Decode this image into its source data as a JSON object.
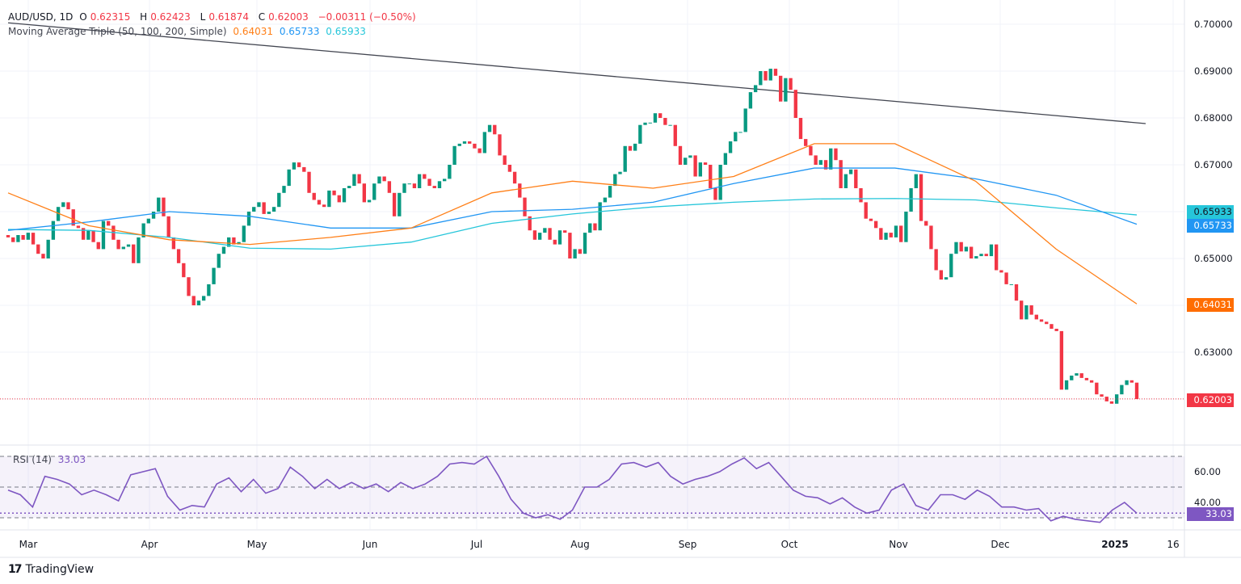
{
  "header": {
    "symbol": "AUD/USD, 1D",
    "open_label": "O",
    "open": "0.62315",
    "high_label": "H",
    "high": "0.62423",
    "low_label": "L",
    "low": "0.61874",
    "close_label": "C",
    "close": "0.62003",
    "change": "−0.00311 (−0.50%)",
    "indicator": "Moving Average Triple (50, 100, 200, Simple)",
    "ma50_value": "0.64031",
    "ma100_value": "0.65733",
    "ma200_value": "0.65933"
  },
  "colors": {
    "up": "#089981",
    "down": "#f23645",
    "ma50": "#ff7f17",
    "ma100": "#2196f3",
    "ma200": "#26c6da",
    "rsi": "#7e57c2",
    "trendline": "#434651"
  },
  "price_axis": {
    "ticks": [
      "0.70000",
      "0.69000",
      "0.68000",
      "0.67000",
      "0.65000",
      "0.63000"
    ],
    "tags": {
      "ma200": "0.65933",
      "ma100": "0.65733",
      "ma50": "0.64031",
      "last": "0.62003"
    }
  },
  "rsi": {
    "label": "RSI (14)",
    "value": "33.03",
    "ticks": [
      "60.00",
      "40.00"
    ],
    "tag": "33.03"
  },
  "time_axis": [
    "Mar",
    "Apr",
    "May",
    "Jun",
    "Jul",
    "Aug",
    "Sep",
    "Oct",
    "Nov",
    "Dec",
    "2025",
    "16"
  ],
  "footer": {
    "brand": "TradingView"
  },
  "chart_data": {
    "type": "candlestick",
    "title": "AUD/USD, 1D",
    "ylim": [
      0.615,
      0.702
    ],
    "closes": [
      0.6545,
      0.6535,
      0.655,
      0.654,
      0.6555,
      0.653,
      0.651,
      0.65,
      0.654,
      0.658,
      0.661,
      0.662,
      0.6605,
      0.657,
      0.6565,
      0.654,
      0.656,
      0.6535,
      0.652,
      0.658,
      0.657,
      0.654,
      0.652,
      0.6525,
      0.653,
      0.649,
      0.6545,
      0.6575,
      0.6585,
      0.66,
      0.663,
      0.659,
      0.6545,
      0.652,
      0.649,
      0.646,
      0.642,
      0.64,
      0.641,
      0.642,
      0.6445,
      0.648,
      0.651,
      0.6525,
      0.6545,
      0.653,
      0.6535,
      0.657,
      0.66,
      0.661,
      0.662,
      0.6595,
      0.66,
      0.661,
      0.664,
      0.6655,
      0.669,
      0.6705,
      0.6695,
      0.6685,
      0.664,
      0.6625,
      0.6615,
      0.661,
      0.6645,
      0.6635,
      0.662,
      0.665,
      0.6655,
      0.668,
      0.666,
      0.662,
      0.6625,
      0.666,
      0.6675,
      0.6665,
      0.664,
      0.659,
      0.664,
      0.666,
      0.666,
      0.665,
      0.668,
      0.667,
      0.6655,
      0.665,
      0.6665,
      0.667,
      0.67,
      0.674,
      0.6745,
      0.675,
      0.6745,
      0.6735,
      0.6725,
      0.677,
      0.6785,
      0.6765,
      0.672,
      0.67,
      0.6685,
      0.666,
      0.663,
      0.659,
      0.656,
      0.654,
      0.6555,
      0.6565,
      0.654,
      0.653,
      0.656,
      0.6555,
      0.65,
      0.652,
      0.651,
      0.6555,
      0.6575,
      0.656,
      0.662,
      0.663,
      0.6655,
      0.668,
      0.6685,
      0.674,
      0.673,
      0.6745,
      0.6785,
      0.679,
      0.679,
      0.681,
      0.68,
      0.6785,
      0.6785,
      0.674,
      0.67,
      0.6715,
      0.672,
      0.6675,
      0.6705,
      0.67,
      0.665,
      0.6625,
      0.67,
      0.6725,
      0.675,
      0.677,
      0.677,
      0.682,
      0.6855,
      0.687,
      0.69,
      0.688,
      0.6905,
      0.689,
      0.6835,
      0.6885,
      0.686,
      0.68,
      0.6755,
      0.674,
      0.672,
      0.67,
      0.671,
      0.669,
      0.6735,
      0.671,
      0.665,
      0.668,
      0.669,
      0.665,
      0.662,
      0.6585,
      0.658,
      0.6565,
      0.654,
      0.6555,
      0.6545,
      0.657,
      0.6535,
      0.66,
      0.665,
      0.668,
      0.658,
      0.657,
      0.652,
      0.6475,
      0.6455,
      0.646,
      0.651,
      0.6535,
      0.6515,
      0.6525,
      0.65,
      0.6505,
      0.651,
      0.6505,
      0.653,
      0.6475,
      0.647,
      0.6445,
      0.6445,
      0.641,
      0.637,
      0.64,
      0.638,
      0.637,
      0.6365,
      0.636,
      0.635,
      0.6345,
      0.622,
      0.624,
      0.625,
      0.6255,
      0.6245,
      0.624,
      0.6235,
      0.621,
      0.6205,
      0.6195,
      0.619,
      0.621,
      0.623,
      0.624,
      0.6235,
      0.62
    ],
    "ma50": [
      0.664,
      0.657,
      0.654,
      0.653,
      0.6545,
      0.6565,
      0.664,
      0.6665,
      0.665,
      0.6675,
      0.6745,
      0.6745,
      0.6665,
      0.652,
      0.6403
    ],
    "ma100": [
      0.656,
      0.6578,
      0.66,
      0.659,
      0.6565,
      0.6565,
      0.66,
      0.6605,
      0.662,
      0.666,
      0.6693,
      0.6693,
      0.667,
      0.6635,
      0.6573
    ],
    "ma200": [
      0.6562,
      0.656,
      0.6545,
      0.6522,
      0.652,
      0.6535,
      0.6575,
      0.6595,
      0.661,
      0.662,
      0.6627,
      0.6628,
      0.6625,
      0.6608,
      0.6593
    ],
    "trendline": [
      0.7003,
      0.6788
    ],
    "last_price": 0.62003,
    "rsi_levels": [
      70,
      50,
      30
    ],
    "rsi_values": [
      48,
      45,
      37,
      57,
      55,
      52,
      45,
      48,
      45,
      41,
      58,
      60,
      62,
      44,
      35,
      38,
      37,
      52,
      56,
      47,
      55,
      46,
      49,
      63,
      57,
      49,
      55,
      49,
      53,
      49,
      52,
      47,
      53,
      49,
      52,
      57,
      65,
      66,
      65,
      70,
      57,
      42,
      33,
      30,
      32,
      29,
      35,
      50,
      50,
      55,
      65,
      66,
      63,
      66,
      57,
      52,
      55,
      57,
      60,
      65,
      69,
      62,
      66,
      57,
      48,
      44,
      43,
      39,
      43,
      37,
      33,
      35,
      48,
      52,
      38,
      35,
      45,
      45,
      42,
      48,
      44,
      37,
      37,
      35,
      36,
      28,
      31,
      29,
      28,
      27,
      35,
      40,
      33
    ]
  }
}
